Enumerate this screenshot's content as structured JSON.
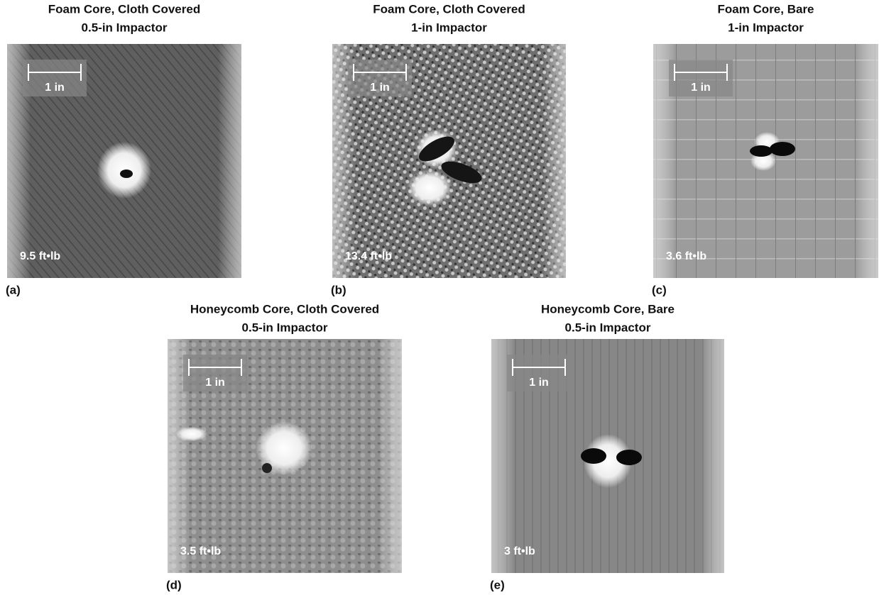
{
  "panels": [
    {
      "label": "(a)",
      "title": [
        "Foam Core, Cloth Covered",
        "0.5-in Impactor"
      ],
      "scale_label": "1 in",
      "energy": "9.5 ft•lb"
    },
    {
      "label": "(b)",
      "title": [
        "Foam Core, Cloth Covered",
        "1-in Impactor"
      ],
      "scale_label": "1 in",
      "energy": "13.4 ft•lb"
    },
    {
      "label": "(c)",
      "title": [
        "Foam Core, Bare",
        "1-in Impactor"
      ],
      "scale_label": "1 in",
      "energy": "3.6 ft•lb"
    },
    {
      "label": "(d)",
      "title": [
        "Honeycomb Core, Cloth Covered",
        "0.5-in Impactor"
      ],
      "scale_label": "1 in",
      "energy": "3.5 ft•lb"
    },
    {
      "label": "(e)",
      "title": [
        "Honeycomb Core, Bare",
        "0.5-in Impactor"
      ],
      "scale_label": "1 in",
      "energy": "3 ft•lb"
    }
  ]
}
